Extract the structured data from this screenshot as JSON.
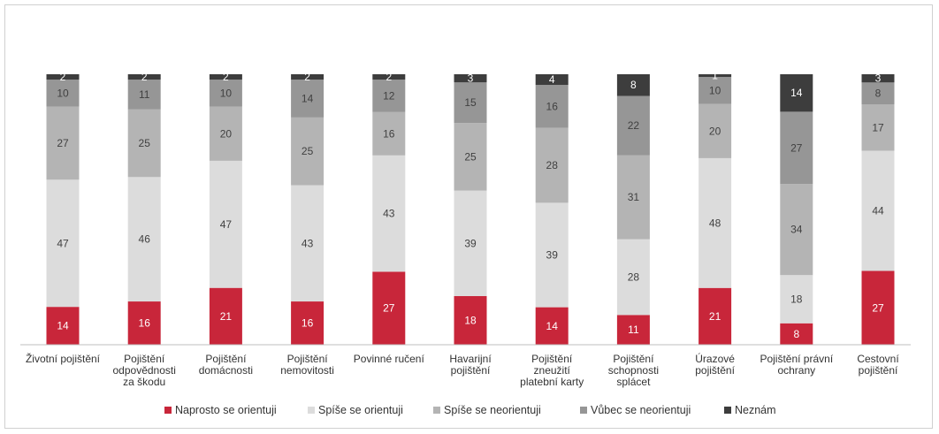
{
  "chart_data": {
    "type": "bar",
    "stacked": true,
    "percent": true,
    "categories": [
      "Životní pojištění",
      "Pojištění odpovědnosti za škodu",
      "Pojištění domácnosti",
      "Pojištění nemovitosti",
      "Povinné ručení",
      "Havarijní pojištění",
      "Pojištění zneužití platební karty",
      "Pojištění schopnosti splácet",
      "Úrazové pojištění",
      "Pojištění právní ochrany",
      "Cestovní pojištění"
    ],
    "category_lines": [
      [
        "Životní pojištění"
      ],
      [
        "Pojištění",
        "odpovědnosti",
        "za škodu"
      ],
      [
        "Pojištění",
        "domácnosti"
      ],
      [
        "Pojištění",
        "nemovitosti"
      ],
      [
        "Povinné ručení"
      ],
      [
        "Havarijní",
        "pojištění"
      ],
      [
        "Pojištění",
        "zneužití",
        "platební karty"
      ],
      [
        "Pojištění",
        "schopnosti",
        "splácet"
      ],
      [
        "Úrazové",
        "pojištění"
      ],
      [
        "Pojištění právní",
        "ochrany"
      ],
      [
        "Cestovní",
        "pojištění"
      ]
    ],
    "series": [
      {
        "name": "Naprosto se orientuji",
        "color": "#c8263a",
        "label_color": "#ffffff",
        "values": [
          14,
          16,
          21,
          16,
          27,
          18,
          14,
          11,
          21,
          8,
          27
        ]
      },
      {
        "name": "Spíše se orientuji",
        "color": "#dcdcdc",
        "label_color": "#404040",
        "values": [
          47,
          46,
          47,
          43,
          43,
          39,
          39,
          28,
          48,
          18,
          44
        ]
      },
      {
        "name": "Spíše se neorientuji",
        "color": "#b4b4b4",
        "label_color": "#404040",
        "values": [
          27,
          25,
          20,
          25,
          16,
          25,
          28,
          31,
          20,
          34,
          17
        ]
      },
      {
        "name": "Vůbec se neorientuji",
        "color": "#969696",
        "label_color": "#404040",
        "values": [
          10,
          11,
          10,
          14,
          12,
          15,
          16,
          22,
          10,
          27,
          8
        ]
      },
      {
        "name": "Neznám",
        "color": "#3d3d3d",
        "label_color": "#ffffff",
        "values": [
          2,
          2,
          2,
          2,
          2,
          3,
          4,
          8,
          1,
          14,
          3
        ]
      }
    ],
    "ylim": [
      0,
      100
    ],
    "legend_position": "bottom",
    "grid": false
  }
}
